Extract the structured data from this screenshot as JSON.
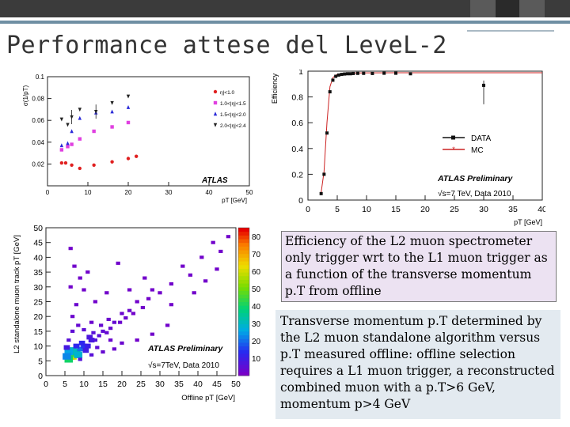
{
  "slide": {
    "title": "Performance attese del LeveL-2"
  },
  "captions": {
    "efficiency": "Efficiency of the L2 muon spectrometer only trigger wrt to the L1 muon trigger as a function of the transverse momentum p.T from offline",
    "correlation": "Transverse momentum p.T determined by the L2 muon standalone algorithm versus p.T measured offline: offline selection requires a L1 muon trigger, a reconstructed combined muon with a p.T>6 GeV, momentum p>4 GeV"
  },
  "chart_data": [
    {
      "type": "scatter",
      "xlabel": "pT [GeV]",
      "ylabel": "σ(1/pT)",
      "xlim": [
        0,
        50
      ],
      "ylim": [
        0,
        0.1
      ],
      "xticks": [
        "0",
        "10",
        "20",
        "30",
        "40",
        "50"
      ],
      "yticks": [
        "0.02",
        "0.04",
        "0.06",
        "0.08",
        "0.1"
      ],
      "annotation": "ATLAS",
      "legend_position": "top-right",
      "series": [
        {
          "name": "η|<1.0",
          "color": "#e02020",
          "marker": "circle",
          "x": [
            3.5,
            4.5,
            6,
            8,
            11.5,
            16,
            20,
            22
          ],
          "y": [
            0.021,
            0.021,
            0.019,
            0.016,
            0.019,
            0.022,
            0.025,
            0.027
          ]
        },
        {
          "name": "1.0<|η|<1.5",
          "color": "#e040e0",
          "marker": "square",
          "x": [
            3.5,
            5,
            6,
            8,
            11.5,
            16,
            20
          ],
          "y": [
            0.033,
            0.036,
            0.038,
            0.043,
            0.05,
            0.054,
            0.058
          ]
        },
        {
          "name": "1.5<|η|<2.0",
          "color": "#2a2ad8",
          "marker": "triangle-up",
          "x": [
            3.5,
            5,
            6,
            8,
            12,
            16,
            20
          ],
          "y": [
            0.037,
            0.039,
            0.05,
            0.062,
            0.067,
            0.068,
            0.072
          ]
        },
        {
          "name": "2.0<|η|<2.4",
          "color": "#222222",
          "marker": "triangle-down",
          "x": [
            3.5,
            5,
            6,
            8,
            12,
            16,
            20
          ],
          "y": [
            0.061,
            0.056,
            0.063,
            0.07,
            0.068,
            0.076,
            0.082
          ]
        }
      ]
    },
    {
      "type": "line",
      "xlabel": "pT [GeV]",
      "ylabel": "Efficiency",
      "xlim": [
        0,
        40
      ],
      "ylim": [
        0,
        1
      ],
      "xticks": [
        "0",
        "5",
        "10",
        "15",
        "20",
        "25",
        "30",
        "35",
        "40"
      ],
      "yticks": [
        "0",
        "0.2",
        "0.4",
        "0.6",
        "0.8",
        "1"
      ],
      "annotation": "ATLAS Preliminary",
      "subannotation": "√s=7 TeV, Data 2010",
      "legend_position": "center-right",
      "series": [
        {
          "name": "DATA",
          "color": "#111111",
          "x": [
            2.25,
            2.75,
            3.25,
            3.75,
            4.25,
            4.75,
            5.25,
            5.75,
            6.25,
            6.75,
            7.25,
            7.75,
            8.5,
            9.5,
            11,
            13,
            15,
            17.5,
            30
          ],
          "y": [
            0.05,
            0.2,
            0.52,
            0.84,
            0.93,
            0.96,
            0.97,
            0.975,
            0.978,
            0.98,
            0.98,
            0.982,
            0.983,
            0.983,
            0.982,
            0.984,
            0.984,
            0.98,
            0.89
          ]
        },
        {
          "name": "MC",
          "color": "#cc2222",
          "x": [
            2.25,
            2.75,
            3.25,
            3.75,
            4.25,
            4.75,
            5.25,
            6,
            7,
            8,
            10,
            15,
            20,
            25,
            30,
            35,
            40
          ],
          "y": [
            0.06,
            0.22,
            0.6,
            0.88,
            0.95,
            0.97,
            0.978,
            0.982,
            0.985,
            0.986,
            0.987,
            0.988,
            0.988,
            0.988,
            0.988,
            0.988,
            0.988
          ]
        }
      ]
    },
    {
      "type": "heatmap",
      "xlabel": "Offline pT [GeV]",
      "ylabel": "L2 standalone muon track pT [GeV]",
      "xlim": [
        0,
        50
      ],
      "ylim": [
        0,
        50
      ],
      "xticks": [
        "0",
        "5",
        "10",
        "15",
        "20",
        "25",
        "30",
        "35",
        "40",
        "45",
        "50"
      ],
      "yticks": [
        "0",
        "5",
        "10",
        "15",
        "20",
        "25",
        "30",
        "35",
        "40",
        "45",
        "50"
      ],
      "colorbar_ticks": [
        "10",
        "20",
        "30",
        "40",
        "50",
        "60",
        "70",
        "80"
      ],
      "zlim": [
        0,
        85
      ],
      "annotation": "ATLAS Preliminary",
      "subannotation": "√s=7TeV, Data 2010",
      "points": [
        [
          6.5,
          6.5,
          80
        ],
        [
          6,
          6,
          70
        ],
        [
          7,
          6.5,
          60
        ],
        [
          6.5,
          7.5,
          55
        ],
        [
          7.5,
          7.5,
          45
        ],
        [
          6,
          5.5,
          40
        ],
        [
          8,
          8,
          35
        ],
        [
          7,
          8.5,
          30
        ],
        [
          8.5,
          7,
          28
        ],
        [
          9,
          9,
          20
        ],
        [
          6,
          8,
          25
        ],
        [
          5.5,
          6.5,
          22
        ],
        [
          10,
          10,
          14
        ],
        [
          9.5,
          11,
          12
        ],
        [
          11,
          10,
          10
        ],
        [
          8,
          10,
          12
        ],
        [
          10.5,
          8.5,
          9
        ],
        [
          12,
          12,
          8
        ],
        [
          11.5,
          13,
          7
        ],
        [
          13,
          12,
          6
        ],
        [
          12.5,
          14.5,
          5
        ],
        [
          14,
          13.5,
          5
        ],
        [
          15,
          15,
          4
        ],
        [
          16,
          14.5,
          3
        ],
        [
          14.5,
          17,
          3
        ],
        [
          17,
          16,
          3
        ],
        [
          18,
          18,
          3
        ],
        [
          16.5,
          19,
          2
        ],
        [
          19.5,
          18,
          2
        ],
        [
          20,
          21,
          2
        ],
        [
          21,
          19.5,
          2
        ],
        [
          22,
          22,
          2
        ],
        [
          23,
          21,
          1
        ],
        [
          24,
          25,
          1
        ],
        [
          25.5,
          23,
          1
        ],
        [
          27,
          26,
          1
        ],
        [
          28,
          29,
          1
        ],
        [
          30,
          28,
          1
        ],
        [
          33,
          31,
          1
        ],
        [
          36,
          37,
          1
        ],
        [
          38,
          34,
          1
        ],
        [
          41,
          40,
          1
        ],
        [
          44,
          45,
          1
        ],
        [
          46,
          42,
          1
        ],
        [
          48,
          47,
          1
        ],
        [
          7,
          20,
          2
        ],
        [
          8,
          24,
          2
        ],
        [
          6.5,
          30,
          1
        ],
        [
          9,
          33,
          1
        ],
        [
          10,
          29,
          1
        ],
        [
          7.5,
          37,
          1
        ],
        [
          6.5,
          43,
          1
        ],
        [
          8.5,
          17,
          3
        ],
        [
          7,
          15,
          4
        ],
        [
          6,
          12,
          5
        ],
        [
          12,
          7,
          5
        ],
        [
          15,
          8,
          3
        ],
        [
          18,
          9,
          2
        ],
        [
          20,
          11,
          2
        ],
        [
          24,
          12,
          1
        ],
        [
          28,
          14,
          1
        ],
        [
          32,
          17,
          1
        ],
        [
          13,
          25,
          1
        ],
        [
          16,
          28,
          1
        ],
        [
          11,
          35,
          1
        ],
        [
          26,
          33,
          1
        ],
        [
          33,
          24,
          1
        ],
        [
          22,
          29,
          1
        ],
        [
          42,
          32,
          1
        ],
        [
          45,
          36,
          1
        ],
        [
          39,
          28,
          1
        ],
        [
          19,
          38,
          1
        ],
        [
          5.5,
          9.5,
          8
        ],
        [
          9,
          5.5,
          6
        ],
        [
          13.5,
          9.5,
          4
        ],
        [
          10,
          15.5,
          4
        ],
        [
          17,
          12,
          2
        ],
        [
          12,
          18,
          2
        ]
      ]
    }
  ]
}
